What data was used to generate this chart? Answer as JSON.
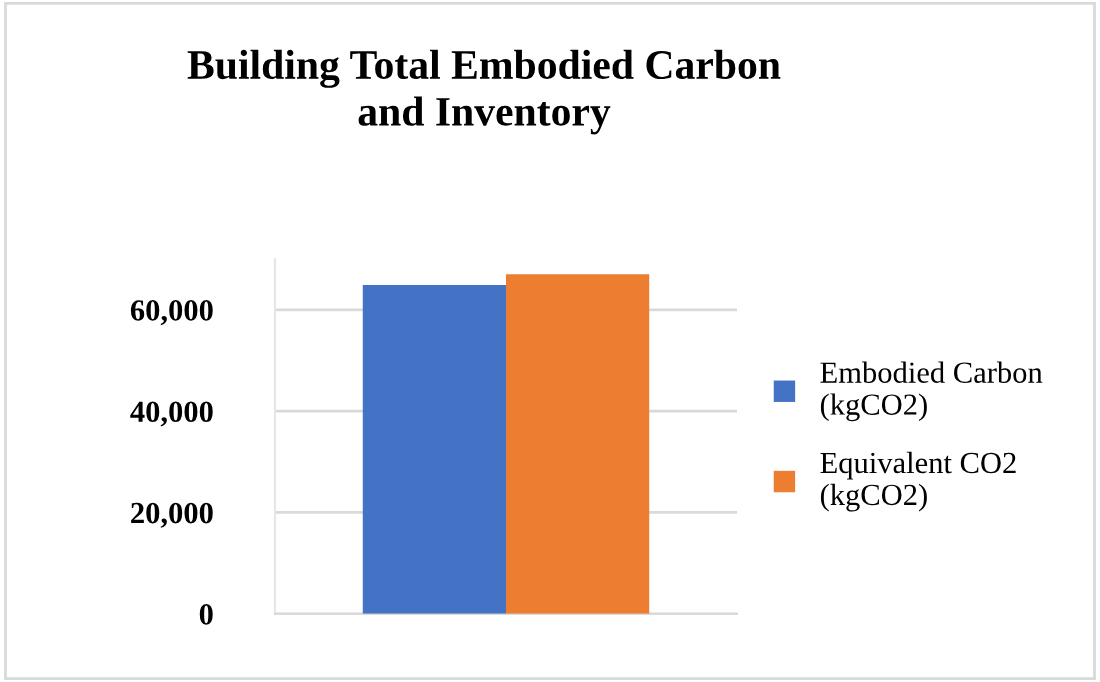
{
  "chart_data": {
    "type": "bar",
    "title": "Building Total Embodied Carbon\nand Inventory",
    "categories": [
      null
    ],
    "series": [
      {
        "name": "Embodied Carbon\n(kgCO2)",
        "color": "#4472c4",
        "values": [
          64900
        ]
      },
      {
        "name": "Equivalent CO2\n(kgCO2)",
        "color": "#ed7d31",
        "values": [
          67000
        ]
      }
    ],
    "ylim": [
      0,
      70000
    ],
    "yticks": [
      {
        "value": 0,
        "label": "0"
      },
      {
        "value": 20000,
        "label": "20,000"
      },
      {
        "value": 40000,
        "label": "40,000"
      },
      {
        "value": 60000,
        "label": "60,000"
      }
    ],
    "grid": "y",
    "legend": "right"
  }
}
